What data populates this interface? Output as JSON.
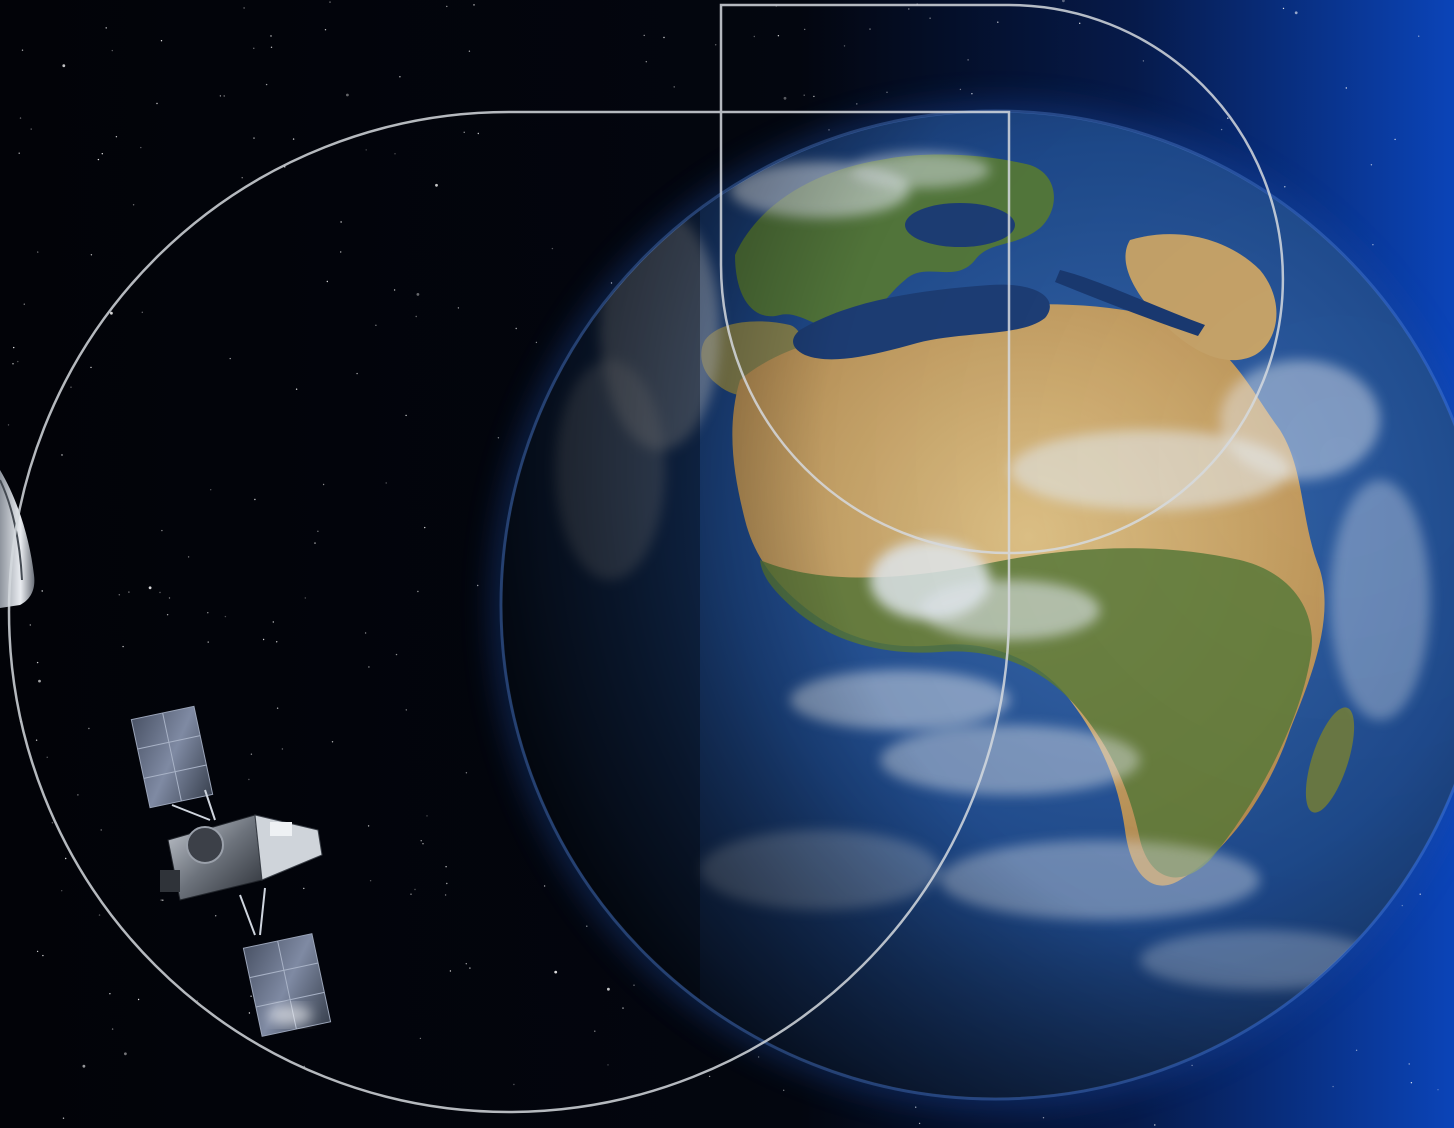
{
  "scene": {
    "subjects": [
      "earth-globe",
      "weather-satellite",
      "spacecraft-edge",
      "star-field",
      "outline-shapes"
    ]
  },
  "colors": {
    "space": "#020308",
    "glow_blue": "#0b3fa8",
    "ocean": "#1d3f7a",
    "desert": "#c9a867",
    "forest": "#4f7236",
    "cloud": "#e8eef5",
    "outline": "#d5d9de"
  }
}
